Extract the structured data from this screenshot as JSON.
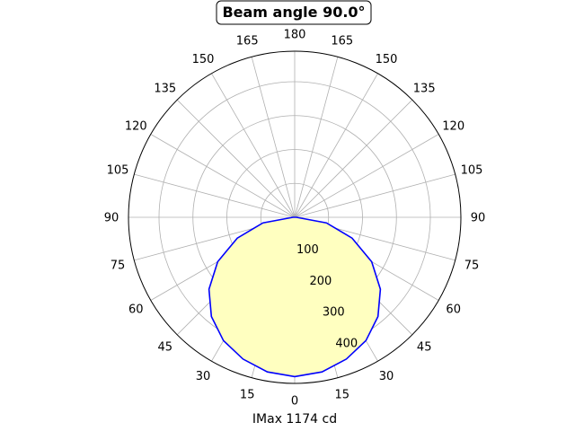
{
  "chart_data": {
    "type": "polar-line",
    "title": "Beam angle 90.0°",
    "xlabel": "IMax 1174 cd",
    "angle_tick_labels": [
      "0",
      "15",
      "30",
      "45",
      "60",
      "75",
      "90",
      "105",
      "120",
      "135",
      "150",
      "165",
      "180",
      "165",
      "150",
      "135",
      "120",
      "105",
      "90",
      "75",
      "60",
      "45",
      "30",
      "15"
    ],
    "radial_ticks": [
      100,
      200,
      300,
      400
    ],
    "rlim": [
      0,
      490
    ],
    "grid": true,
    "series": [
      {
        "color": "#0000ff",
        "fill": "#ffffc0",
        "angles_deg": [
          0,
          10,
          20,
          30,
          40,
          50,
          60,
          70,
          80,
          90
        ],
        "values": [
          470,
          463,
          445,
          420,
          382,
          330,
          262,
          180,
          95,
          5
        ]
      }
    ]
  }
}
